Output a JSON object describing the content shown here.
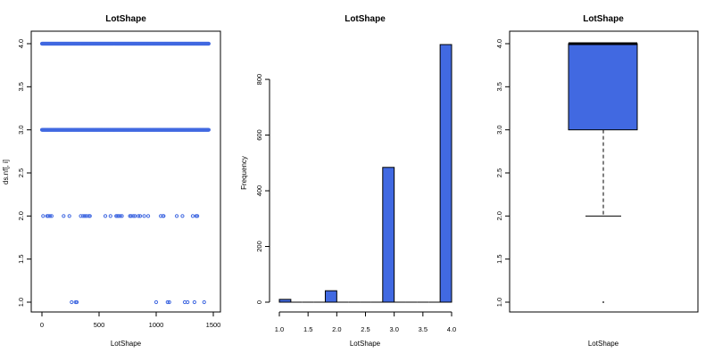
{
  "colors": {
    "fill": "#4169E1",
    "stroke": "#000000"
  },
  "chart_data": [
    {
      "type": "scatter",
      "title": "LotShape",
      "xlabel": "LotShape",
      "ylabel": "ds.nf[, i]",
      "xlim": [
        0,
        1460
      ],
      "ylim": [
        1.0,
        4.0
      ],
      "xticks": [
        "0",
        "500",
        "1000",
        "1500"
      ],
      "yticks": [
        "1.0",
        "1.5",
        "2.0",
        "2.5",
        "3.0",
        "3.5",
        "4.0"
      ],
      "marker": "open-circle",
      "dense_rows": [
        {
          "y": 4.0,
          "x_from": 0,
          "x_to": 1460
        },
        {
          "y": 3.0,
          "x_from": 0,
          "x_to": 1460
        }
      ],
      "points": [
        {
          "y": 2.0,
          "x": [
            10,
            45,
            55,
            70,
            85,
            190,
            240,
            340,
            360,
            375,
            390,
            410,
            420,
            555,
            600,
            650,
            660,
            670,
            685,
            700,
            770,
            780,
            800,
            815,
            845,
            860,
            895,
            930,
            1040,
            1060,
            1065,
            1180,
            1230,
            1320,
            1350,
            1360
          ]
        },
        {
          "y": 1.0,
          "x": [
            260,
            295,
            305,
            1000,
            1100,
            1115,
            1250,
            1275,
            1335,
            1420
          ]
        }
      ]
    },
    {
      "type": "bar",
      "subtype": "histogram",
      "title": "LotShape",
      "xlabel": "LotShape",
      "ylabel": "Frequency",
      "xlim": [
        1.0,
        4.0
      ],
      "ylim": [
        0,
        925
      ],
      "xticks": [
        "1.0",
        "1.5",
        "2.0",
        "2.5",
        "3.0",
        "3.5",
        "4.0"
      ],
      "yticks": [
        "0",
        "200",
        "400",
        "600",
        "800"
      ],
      "bins": [
        {
          "from": 1.0,
          "to": 1.2,
          "value": 10
        },
        {
          "from": 1.2,
          "to": 1.4,
          "value": 0
        },
        {
          "from": 1.4,
          "to": 1.6,
          "value": 0
        },
        {
          "from": 1.6,
          "to": 1.8,
          "value": 0
        },
        {
          "from": 1.8,
          "to": 2.0,
          "value": 41
        },
        {
          "from": 2.0,
          "to": 2.2,
          "value": 0
        },
        {
          "from": 2.2,
          "to": 2.4,
          "value": 0
        },
        {
          "from": 2.4,
          "to": 2.6,
          "value": 0
        },
        {
          "from": 2.6,
          "to": 2.8,
          "value": 0
        },
        {
          "from": 2.8,
          "to": 3.0,
          "value": 484
        },
        {
          "from": 3.0,
          "to": 3.2,
          "value": 0
        },
        {
          "from": 3.2,
          "to": 3.4,
          "value": 0
        },
        {
          "from": 3.4,
          "to": 3.6,
          "value": 0
        },
        {
          "from": 3.6,
          "to": 3.8,
          "value": 0
        },
        {
          "from": 3.8,
          "to": 4.0,
          "value": 925
        }
      ]
    },
    {
      "type": "boxplot",
      "title": "LotShape",
      "xlabel": "LotShape",
      "ylim": [
        1.0,
        4.0
      ],
      "yticks": [
        "1.0",
        "1.5",
        "2.0",
        "2.5",
        "3.0",
        "3.5",
        "4.0"
      ],
      "q1": 3.0,
      "median": 4.0,
      "q3": 4.0,
      "whisker_low": 2.0,
      "whisker_high": 4.0,
      "outliers": [
        1.0
      ]
    }
  ]
}
